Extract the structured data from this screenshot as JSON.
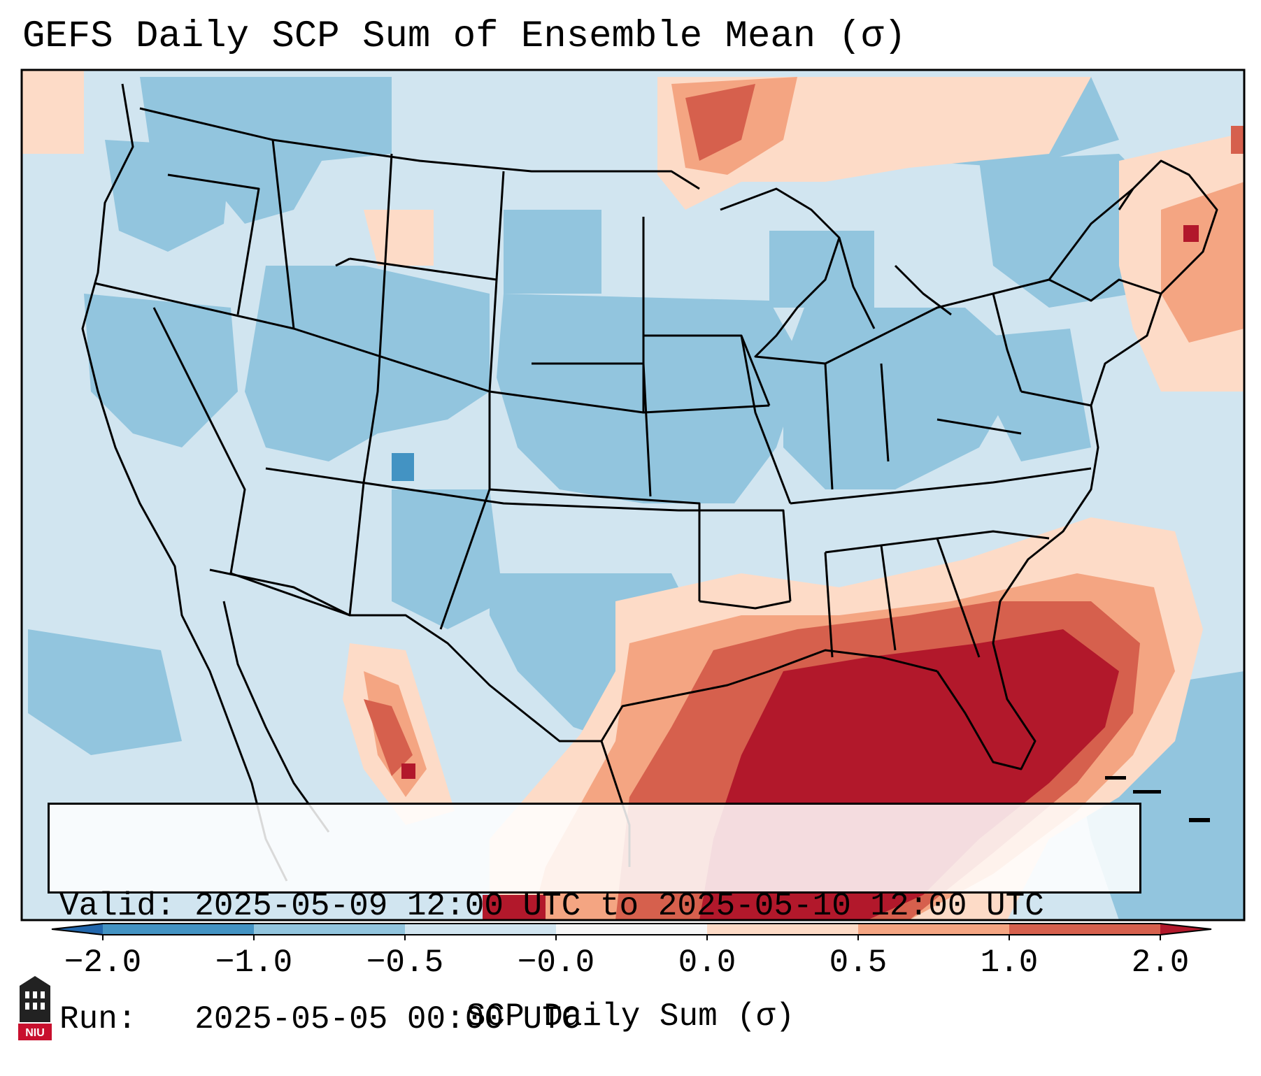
{
  "title": "GEFS Daily SCP Sum of Ensemble Mean (σ)",
  "info": {
    "valid_label": "Valid:",
    "valid_value": "2025-05-09 12:00 UTC to 2025-05-10 12:00 UTC",
    "run_label": "Run:",
    "run_value": "2025-05-05 00:00 UTC"
  },
  "colorbar": {
    "label": "SCP Daily Sum (σ)",
    "ticks": [
      "−2.0",
      "−1.0",
      "−0.5",
      "−0.0",
      "0.0",
      "0.5",
      "1.0",
      "2.0"
    ],
    "colors": [
      "#4393c3",
      "#92c5de",
      "#d1e5f0",
      "#f7f7f7",
      "#fddbc7",
      "#f4a582",
      "#d6604d"
    ],
    "extend_low_color": "#2166ac",
    "extend_high_color": "#b2182b"
  },
  "map": {
    "region": "Contiguous United States",
    "dominant_negative_color": "#d1e5f0",
    "mid_negative_color": "#92c5de",
    "max_positive_color": "#b2182b"
  },
  "logo": {
    "text": "NIU"
  }
}
